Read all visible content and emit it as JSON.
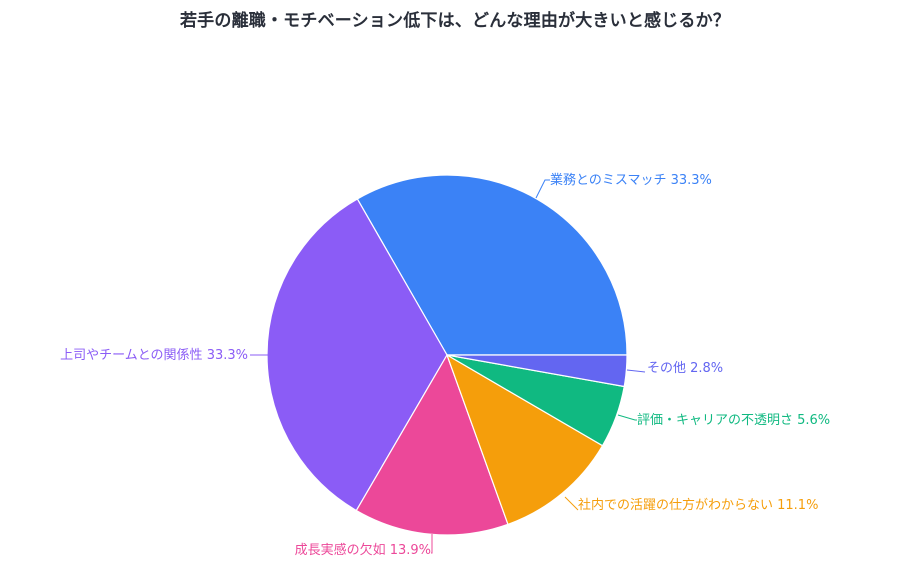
{
  "chart_data": {
    "type": "pie",
    "title": "若手の離職・モチベーション低下は、どんな理由が大きいと感じるか？",
    "start_angle_deg": 0,
    "direction": "counterclockwise",
    "center": [
      447,
      355
    ],
    "radius": 180,
    "slices": [
      {
        "label": "業務とのミスマッチ",
        "value": 33.3,
        "text": "業務とのミスマッチ 33.3%",
        "color": "#3B82F6"
      },
      {
        "label": "上司やチームとの関係性",
        "value": 33.3,
        "text": "上司やチームとの関係性 33.3%",
        "color": "#8B5CF6"
      },
      {
        "label": "成長実感の欠如",
        "value": 13.9,
        "text": "成長実感の欠如 13.9%",
        "color": "#EC4899"
      },
      {
        "label": "社内での活躍の仕方がわからない",
        "value": 11.1,
        "text": "社内での活躍の仕方がわからない 11.1%",
        "color": "#F59E0B"
      },
      {
        "label": "評価・キャリアの不透明さ",
        "value": 5.6,
        "text": "評価・キャリアの不透明さ 5.6%",
        "color": "#10B981"
      },
      {
        "label": "その他",
        "value": 2.8,
        "text": "その他 2.8%",
        "color": "#6366F1"
      }
    ],
    "legend": "none",
    "labels_outside": true
  }
}
